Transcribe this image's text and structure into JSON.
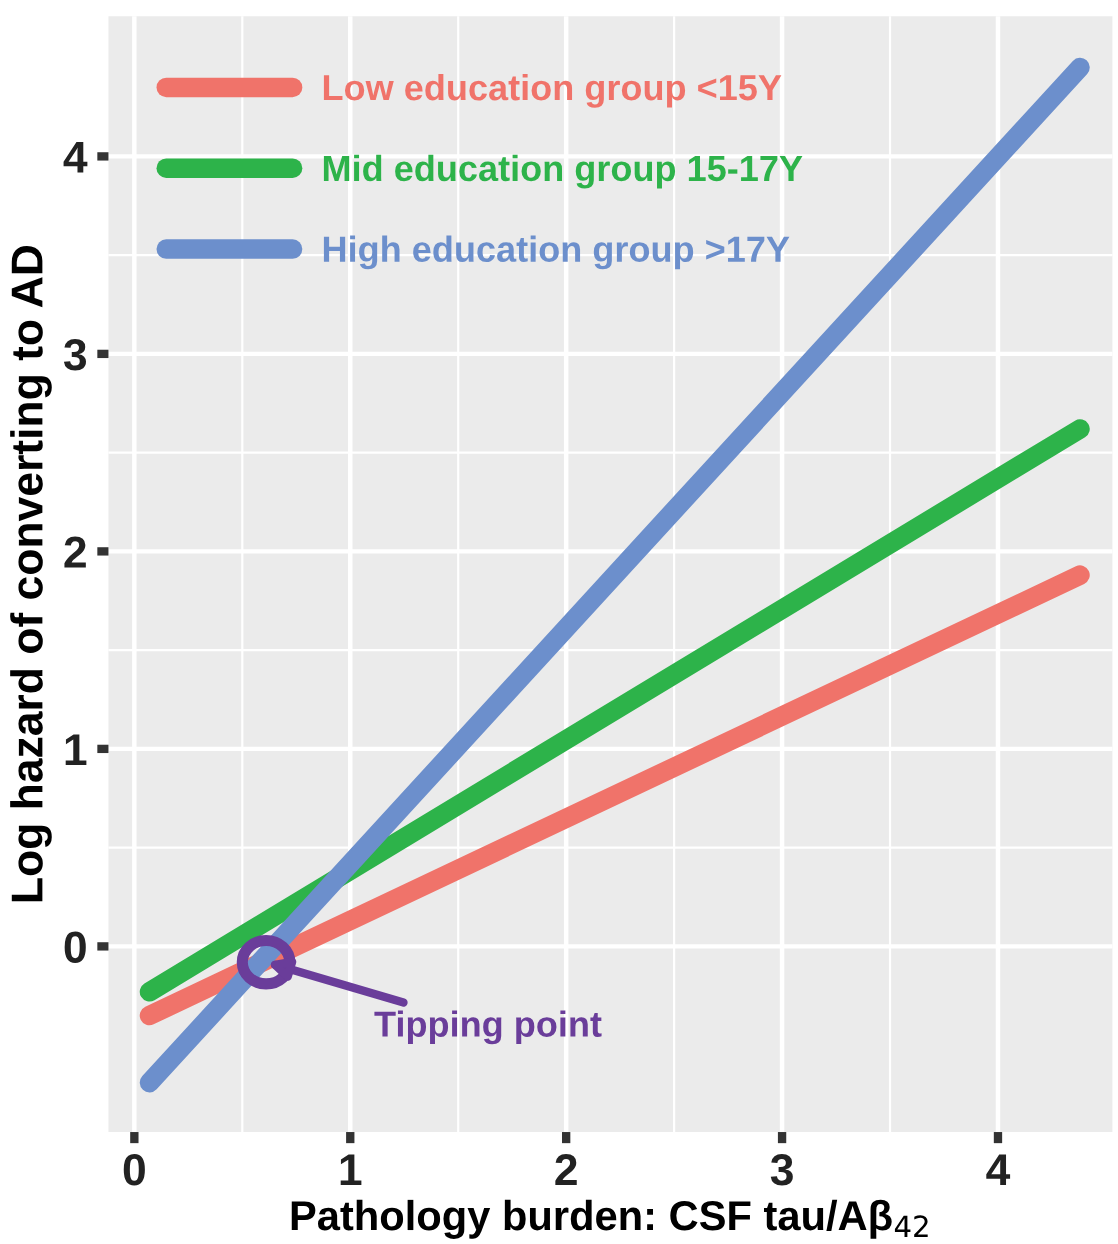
{
  "chart_data": {
    "type": "line",
    "xlabel": "Pathology burden: CSF tau/Aβ$_{42}$",
    "ylabel": "Log hazard of converting to AD",
    "x": [
      0.07,
      4.38
    ],
    "series": [
      {
        "name": "Low education group <15Y",
        "color": "#f0736a",
        "values": [
          -0.35,
          1.88
        ]
      },
      {
        "name": "Mid education group 15-17Y",
        "color": "#2db34a",
        "values": [
          -0.23,
          2.62
        ]
      },
      {
        "name": "High education group >17Y",
        "color": "#6c8fcc",
        "values": [
          -0.69,
          4.45
        ]
      }
    ],
    "xlim": [
      -0.12,
      4.53
    ],
    "ylim": [
      -0.94,
      4.71
    ],
    "xticks": [
      0,
      1,
      2,
      3,
      4
    ],
    "yticks": [
      0,
      1,
      2,
      3,
      4
    ],
    "grid": true,
    "legend": "top left",
    "marker": "none",
    "line_style": "solid",
    "annotations": [
      {
        "text": "Tipping point",
        "x": 0.61,
        "y": -0.08
      }
    ]
  }
}
